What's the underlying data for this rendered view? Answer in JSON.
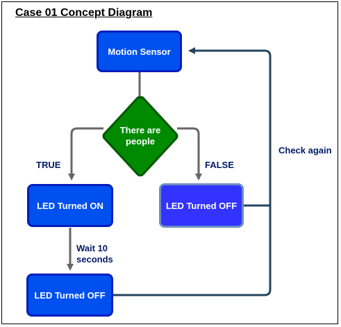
{
  "title": "Case 01 Concept Diagram",
  "nodes": {
    "motion_sensor": "Motion Sensor",
    "decision": "There are\npeople",
    "led_on": "LED Turned ON",
    "led_off_false": "LED Turned OFF",
    "led_off_bottom": "LED Turned OFF"
  },
  "edges": {
    "true_label": "TRUE",
    "false_label": "FALSE",
    "wait_label": "Wait 10\nseconds",
    "check_again_label": "Check again"
  },
  "colors": {
    "process_fill": "#0050ef",
    "process_border": "#001dbc",
    "false_node_fill": "#3333ff",
    "false_node_border": "#6c8ebf",
    "decision_fill": "#008a00",
    "decision_border": "#005700",
    "connector_gray": "#666666",
    "connector_loop": "#23445d"
  }
}
